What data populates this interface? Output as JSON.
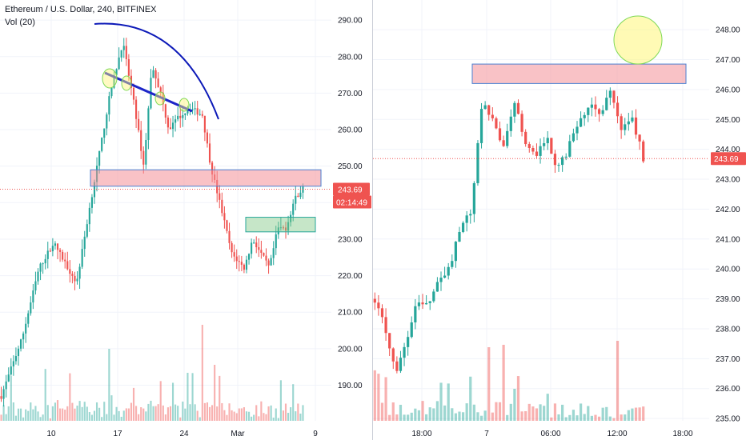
{
  "chart_data": [
    {
      "type": "candlestick",
      "title": "Ethereum / U.S. Dollar, 240, BITFINEX",
      "indicator": "Vol (20)",
      "x_ticks": [
        "10",
        "17",
        "24",
        "Mar",
        "9"
      ],
      "y_ticks": [
        "290.00",
        "280.00",
        "270.00",
        "260.00",
        "250.00",
        "240.00",
        "230.00",
        "220.00",
        "210.00",
        "200.00",
        "190.00"
      ],
      "ylim": [
        182,
        292
      ],
      "last_price": "243.69",
      "countdown": "02:14:49",
      "up_color": "#26a69a",
      "down_color": "#ef5350",
      "resistance_zone": [
        244.5,
        249
      ],
      "target_zone": [
        232,
        236
      ],
      "annotations": [
        "rounded top arc",
        "descending trendline",
        "circled touch points"
      ],
      "grid": true
    },
    {
      "type": "candlestick",
      "x_ticks": [
        "18:00",
        "7",
        "06:00",
        "12:00",
        "18:00"
      ],
      "y_ticks": [
        "248.00",
        "247.00",
        "246.00",
        "245.00",
        "244.00",
        "243.00",
        "242.00",
        "241.00",
        "240.00",
        "239.00",
        "238.00",
        "237.00",
        "236.00",
        "235.00"
      ],
      "ylim": [
        234.95,
        248.35
      ],
      "last_price": "243.69",
      "up_color": "#26a69a",
      "down_color": "#ef5350",
      "resistance_zone": [
        246.2,
        246.85
      ],
      "annotations": [
        "circled wick spike"
      ],
      "grid": true
    }
  ]
}
